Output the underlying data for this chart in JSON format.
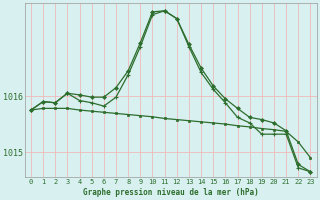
{
  "background_color": "#d8f0f0",
  "grid_color": "#f0b8b8",
  "line_color": "#2d6e2d",
  "title": "Graphe pression niveau de la mer (hPa)",
  "xlim": [
    -0.5,
    23.5
  ],
  "ylim": [
    1014.55,
    1017.65
  ],
  "yticks": [
    1015,
    1016
  ],
  "xticks": [
    0,
    1,
    2,
    3,
    4,
    5,
    6,
    7,
    8,
    9,
    10,
    11,
    12,
    13,
    14,
    15,
    16,
    17,
    18,
    19,
    20,
    21,
    22,
    23
  ],
  "series1_x": [
    0,
    1,
    2,
    3,
    4,
    5,
    6,
    7,
    8,
    9,
    10,
    11,
    12,
    13,
    14,
    15,
    16,
    17,
    18,
    19,
    20,
    21,
    22,
    23
  ],
  "series1_y": [
    1015.75,
    1015.78,
    1015.78,
    1015.78,
    1015.75,
    1015.73,
    1015.71,
    1015.69,
    1015.67,
    1015.65,
    1015.63,
    1015.6,
    1015.58,
    1015.56,
    1015.54,
    1015.52,
    1015.5,
    1015.47,
    1015.45,
    1015.42,
    1015.4,
    1015.37,
    1015.18,
    1014.9
  ],
  "series2_x": [
    0,
    1,
    2,
    3,
    4,
    5,
    6,
    7,
    8,
    9,
    10,
    11,
    12,
    13,
    14,
    15,
    16,
    17,
    18,
    19,
    20,
    21,
    22,
    23
  ],
  "series2_y": [
    1015.75,
    1015.9,
    1015.88,
    1016.05,
    1016.02,
    1015.98,
    1015.98,
    1016.15,
    1016.45,
    1016.95,
    1017.5,
    1017.52,
    1017.38,
    1016.92,
    1016.5,
    1016.18,
    1015.95,
    1015.78,
    1015.62,
    1015.58,
    1015.52,
    1015.38,
    1014.78,
    1014.65
  ],
  "series3_x": [
    0,
    1,
    2,
    3,
    4,
    5,
    6,
    7,
    8,
    9,
    10,
    11,
    12,
    13,
    14,
    15,
    16,
    17,
    18,
    19,
    20,
    21,
    22,
    23
  ],
  "series3_y": [
    1015.75,
    1015.9,
    1015.88,
    1016.05,
    1015.92,
    1015.88,
    1015.82,
    1015.98,
    1016.38,
    1016.88,
    1017.45,
    1017.52,
    1017.38,
    1016.88,
    1016.42,
    1016.12,
    1015.88,
    1015.62,
    1015.52,
    1015.32,
    1015.32,
    1015.32,
    1014.72,
    1014.65
  ],
  "lw": 0.9,
  "ms": 2.0,
  "tick_fontsize": 5,
  "label_fontsize": 5.5
}
